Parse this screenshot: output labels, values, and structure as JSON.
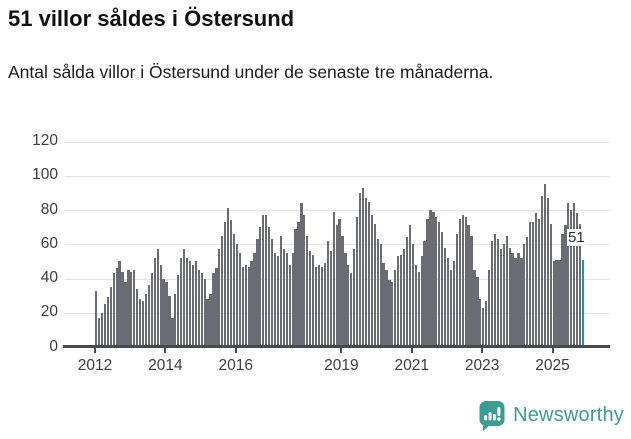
{
  "header": {
    "title": "51 villor såldes i Östersund",
    "subtitle": "Antal sålda villor i Östersund under de senaste tre månaderna."
  },
  "chart_data": {
    "type": "bar",
    "title": "51 villor såldes i Östersund",
    "subtitle": "Antal sålda villor i Östersund under de senaste tre månaderna.",
    "start_month": "2012-01",
    "end_month": "2025-11",
    "values": [
      33,
      17,
      20,
      25,
      29,
      35,
      43,
      46,
      50,
      44,
      38,
      45,
      44,
      45,
      34,
      28,
      27,
      31,
      36,
      43,
      52,
      57,
      48,
      40,
      38,
      30,
      17,
      31,
      42,
      52,
      57,
      52,
      50,
      48,
      50,
      45,
      43,
      40,
      28,
      31,
      43,
      46,
      57,
      65,
      73,
      81,
      74,
      66,
      60,
      55,
      47,
      48,
      47,
      50,
      55,
      63,
      70,
      77,
      77,
      70,
      63,
      55,
      53,
      65,
      57,
      55,
      48,
      55,
      69,
      73,
      84,
      77,
      65,
      56,
      54,
      47,
      48,
      47,
      49,
      62,
      56,
      79,
      71,
      75,
      65,
      55,
      48,
      43,
      57,
      76,
      90,
      93,
      87,
      85,
      77,
      72,
      63,
      60,
      49,
      45,
      39,
      38,
      45,
      53,
      54,
      57,
      64,
      71,
      60,
      48,
      44,
      53,
      62,
      75,
      80,
      79,
      76,
      73,
      67,
      58,
      52,
      45,
      50,
      66,
      75,
      77,
      76,
      71,
      65,
      45,
      41,
      28,
      23,
      27,
      45,
      62,
      66,
      63,
      57,
      60,
      65,
      58,
      55,
      52,
      55,
      52,
      60,
      64,
      73,
      73,
      78,
      75,
      88,
      95,
      87,
      72,
      50,
      51,
      51,
      66,
      71,
      84,
      80,
      84,
      78,
      72,
      51
    ],
    "bar_color": "#6b6b74",
    "highlight": {
      "index": 166,
      "value": 51,
      "label": "51",
      "color": "#169b9b"
    },
    "annotation": "51",
    "y_ticks": [
      0,
      20,
      40,
      60,
      80,
      100,
      120
    ],
    "ylim": [
      0,
      125
    ],
    "x_ticks": [
      {
        "label": "2012",
        "month_index": 0
      },
      {
        "label": "2014",
        "month_index": 24
      },
      {
        "label": "2016",
        "month_index": 48
      },
      {
        "label": "2019",
        "month_index": 84
      },
      {
        "label": "2021",
        "month_index": 108
      },
      {
        "label": "2023",
        "month_index": 132
      },
      {
        "label": "2025",
        "month_index": 156
      }
    ],
    "grid": true,
    "legend_position": "none"
  },
  "footer": {
    "brand": "Newsworthy",
    "brand_color": "#3E9C94",
    "logo_icon": "bar-chart-speech-bubble"
  }
}
